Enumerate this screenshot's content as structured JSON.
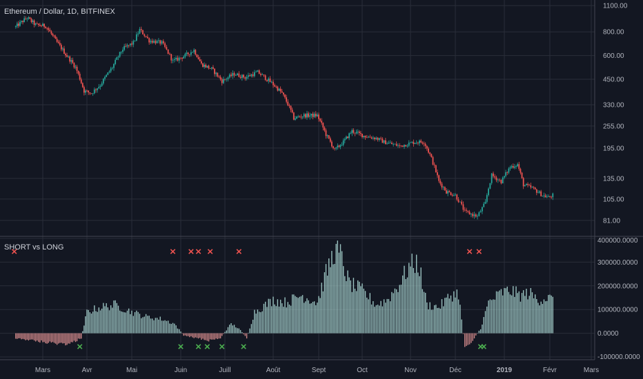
{
  "colors": {
    "background": "#131722",
    "grid": "#2a2e39",
    "text": "#b2b5be",
    "up": "#26a69a",
    "down": "#ef5350",
    "hist_pos": "#b2dfdb",
    "hist_neg": "#ef9a9a",
    "short_marker": "#ef5350",
    "long_marker": "#4caf50"
  },
  "chart_data": [
    {
      "type": "candlestick",
      "title": "Ethereum / Dollar, 1D, BITFINEX",
      "scale": "log",
      "ylim": [
        72,
        1120
      ],
      "y_ticks": [
        "1100.00",
        "800.00",
        "600.00",
        "450.00",
        "330.00",
        "255.00",
        "195.00",
        "135.00",
        "105.00",
        "81.00"
      ],
      "x_ticks": [
        "Mars",
        "Avr",
        "Mai",
        "Juin",
        "Juill",
        "Août",
        "Sept",
        "Oct",
        "Nov",
        "Déc",
        "2019",
        "Févr",
        "Mars"
      ],
      "close_path": [
        [
          "2018-02-10",
          850
        ],
        [
          "2018-02-18",
          950
        ],
        [
          "2018-02-24",
          870
        ],
        [
          "2018-03-03",
          860
        ],
        [
          "2018-03-10",
          720
        ],
        [
          "2018-03-17",
          610
        ],
        [
          "2018-03-24",
          520
        ],
        [
          "2018-03-30",
          390
        ],
        [
          "2018-04-04",
          380
        ],
        [
          "2018-04-10",
          420
        ],
        [
          "2018-04-18",
          520
        ],
        [
          "2018-04-25",
          650
        ],
        [
          "2018-05-02",
          700
        ],
        [
          "2018-05-06",
          820
        ],
        [
          "2018-05-12",
          720
        ],
        [
          "2018-05-20",
          700
        ],
        [
          "2018-05-27",
          560
        ],
        [
          "2018-06-04",
          600
        ],
        [
          "2018-06-10",
          640
        ],
        [
          "2018-06-15",
          540
        ],
        [
          "2018-06-22",
          510
        ],
        [
          "2018-06-29",
          440
        ],
        [
          "2018-07-07",
          480
        ],
        [
          "2018-07-14",
          460
        ],
        [
          "2018-07-22",
          490
        ],
        [
          "2018-07-31",
          430
        ],
        [
          "2018-08-07",
          380
        ],
        [
          "2018-08-12",
          320
        ],
        [
          "2018-08-15",
          280
        ],
        [
          "2018-08-22",
          290
        ],
        [
          "2018-08-31",
          290
        ],
        [
          "2018-09-06",
          230
        ],
        [
          "2018-09-12",
          190
        ],
        [
          "2018-09-18",
          210
        ],
        [
          "2018-09-24",
          240
        ],
        [
          "2018-10-03",
          225
        ],
        [
          "2018-10-10",
          220
        ],
        [
          "2018-10-15",
          210
        ],
        [
          "2018-10-25",
          200
        ],
        [
          "2018-11-04",
          210
        ],
        [
          "2018-11-10",
          210
        ],
        [
          "2018-11-14",
          180
        ],
        [
          "2018-11-20",
          130
        ],
        [
          "2018-11-25",
          115
        ],
        [
          "2018-12-01",
          110
        ],
        [
          "2018-12-07",
          90
        ],
        [
          "2018-12-15",
          85
        ],
        [
          "2018-12-20",
          100
        ],
        [
          "2018-12-24",
          140
        ],
        [
          "2018-12-30",
          130
        ],
        [
          "2019-01-05",
          155
        ],
        [
          "2019-01-10",
          160
        ],
        [
          "2019-01-14",
          125
        ],
        [
          "2019-01-20",
          120
        ],
        [
          "2019-01-27",
          110
        ],
        [
          "2019-01-31",
          107
        ],
        [
          "2019-02-03",
          110
        ]
      ]
    },
    {
      "type": "bar",
      "title": "SHORT vs LONG",
      "ylim": [
        -100000,
        400000
      ],
      "y_ticks": [
        "400000.0000",
        "300000.0000",
        "200000.0000",
        "100000.0000",
        "0.0000",
        "-100000.0000"
      ],
      "value_path": [
        [
          "2018-02-10",
          -20000
        ],
        [
          "2018-03-05",
          -40000
        ],
        [
          "2018-03-20",
          -45000
        ],
        [
          "2018-03-28",
          -20000
        ],
        [
          "2018-04-01",
          90000
        ],
        [
          "2018-04-10",
          110000
        ],
        [
          "2018-04-20",
          120000
        ],
        [
          "2018-05-01",
          90000
        ],
        [
          "2018-05-10",
          70000
        ],
        [
          "2018-05-20",
          60000
        ],
        [
          "2018-05-28",
          40000
        ],
        [
          "2018-06-03",
          -10000
        ],
        [
          "2018-06-12",
          -20000
        ],
        [
          "2018-06-20",
          -30000
        ],
        [
          "2018-06-28",
          -20000
        ],
        [
          "2018-07-05",
          40000
        ],
        [
          "2018-07-10",
          20000
        ],
        [
          "2018-07-15",
          -20000
        ],
        [
          "2018-07-20",
          90000
        ],
        [
          "2018-08-01",
          140000
        ],
        [
          "2018-08-10",
          130000
        ],
        [
          "2018-08-20",
          160000
        ],
        [
          "2018-08-31",
          130000
        ],
        [
          "2018-09-06",
          250000
        ],
        [
          "2018-09-12",
          350000
        ],
        [
          "2018-09-16",
          330000
        ],
        [
          "2018-09-22",
          210000
        ],
        [
          "2018-10-01",
          180000
        ],
        [
          "2018-10-10",
          120000
        ],
        [
          "2018-10-17",
          140000
        ],
        [
          "2018-10-25",
          210000
        ],
        [
          "2018-10-31",
          280000
        ],
        [
          "2018-11-06",
          300000
        ],
        [
          "2018-11-12",
          120000
        ],
        [
          "2018-11-20",
          110000
        ],
        [
          "2018-11-28",
          160000
        ],
        [
          "2018-12-03",
          170000
        ],
        [
          "2018-12-07",
          -60000
        ],
        [
          "2018-12-12",
          -30000
        ],
        [
          "2018-12-17",
          20000
        ],
        [
          "2018-12-22",
          130000
        ],
        [
          "2018-12-30",
          170000
        ],
        [
          "2019-01-05",
          180000
        ],
        [
          "2019-01-12",
          160000
        ],
        [
          "2019-01-18",
          170000
        ],
        [
          "2019-01-24",
          140000
        ],
        [
          "2019-01-31",
          150000
        ],
        [
          "2019-02-03",
          140000
        ]
      ],
      "short_markers": [
        "2018-02-09",
        "2018-05-27",
        "2018-06-08",
        "2018-06-13",
        "2018-06-21",
        "2018-07-10",
        "2018-12-10",
        "2018-12-16"
      ],
      "long_markers": [
        "2018-03-27",
        "2018-06-01",
        "2018-06-13",
        "2018-06-19",
        "2018-06-29",
        "2018-07-13",
        "2018-12-17",
        "2018-12-19"
      ],
      "marker_symbol": "x"
    }
  ]
}
